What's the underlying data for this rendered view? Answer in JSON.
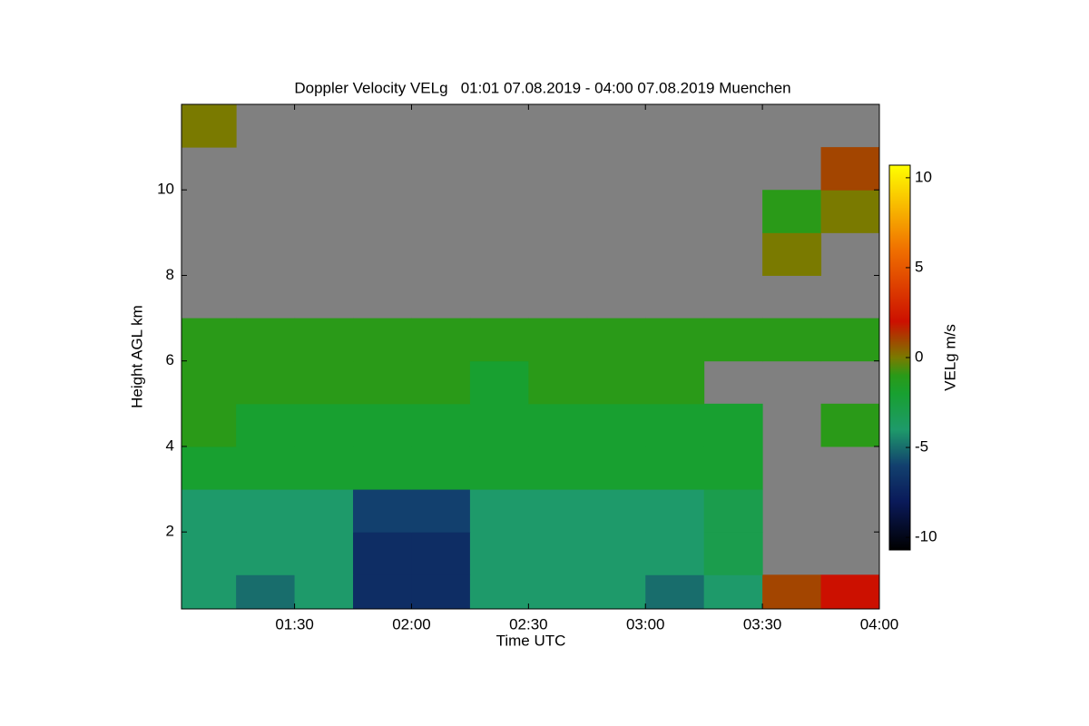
{
  "chart_data": {
    "type": "heatmap",
    "title": "Doppler Velocity VELg   01:01 07.08.2019 - 04:00 07.08.2019 Muenchen",
    "xlabel": "Time UTC",
    "ylabel": "Height AGL km",
    "colorbar_label": "VELg m/s",
    "xlim": [
      61,
      240
    ],
    "xticks": [
      {
        "value": 90,
        "label": "01:30"
      },
      {
        "value": 120,
        "label": "02:00"
      },
      {
        "value": 150,
        "label": "02:30"
      },
      {
        "value": 180,
        "label": "03:00"
      },
      {
        "value": 210,
        "label": "03:30"
      },
      {
        "value": 240,
        "label": "04:00"
      }
    ],
    "ylim": [
      0.2,
      12
    ],
    "yticks": [
      2,
      4,
      6,
      8,
      10
    ],
    "zlim": [
      -10.7,
      10.7
    ],
    "zticks": [
      -10,
      -5,
      0,
      5,
      10
    ],
    "missing_color": "#808080",
    "colormap": [
      {
        "value": -10.7,
        "color": "#000000"
      },
      {
        "value": -8,
        "color": "#0a1a5a"
      },
      {
        "value": -6,
        "color": "#12406e"
      },
      {
        "value": -4,
        "color": "#1e9a6a"
      },
      {
        "value": -2,
        "color": "#18a030"
      },
      {
        "value": -1,
        "color": "#2a9a18"
      },
      {
        "value": 0,
        "color": "#7a7a00"
      },
      {
        "value": 2,
        "color": "#cc1000"
      },
      {
        "value": 6,
        "color": "#f07000"
      },
      {
        "value": 10.7,
        "color": "#ffff00"
      }
    ],
    "x_bins": [
      61,
      75,
      90,
      105,
      120,
      135,
      150,
      165,
      180,
      195,
      210,
      225,
      240
    ],
    "y_bins": [
      0.2,
      1,
      2,
      3,
      4,
      5,
      6,
      7,
      8,
      9,
      10,
      11,
      12
    ],
    "z": [
      [
        -4,
        -5,
        -4,
        -7,
        -7,
        -4,
        -4,
        -4,
        -5,
        -4,
        1,
        2
      ],
      [
        -4,
        -4,
        -4,
        -7,
        -7,
        -4,
        -4,
        -4,
        -4,
        -3,
        null,
        null
      ],
      [
        -4,
        -4,
        -4,
        -6,
        -6,
        -4,
        -4,
        -4,
        -4,
        -3,
        null,
        null
      ],
      [
        -2,
        -2,
        -2,
        -2,
        -2,
        -2,
        -2,
        -2,
        -2,
        -2,
        null,
        null
      ],
      [
        -1,
        -2,
        -2,
        -2,
        -2,
        -2,
        -2,
        -2,
        -2,
        -2,
        null,
        -1
      ],
      [
        -1,
        -1,
        -1,
        -1,
        -1,
        -2,
        -1,
        -1,
        -1,
        null,
        null,
        null
      ],
      [
        -1,
        -1,
        -1,
        -1,
        -1,
        -1,
        -1,
        -1,
        -1,
        -1,
        -1,
        -1
      ],
      [
        null,
        null,
        null,
        null,
        null,
        null,
        null,
        null,
        null,
        null,
        null,
        null
      ],
      [
        null,
        null,
        null,
        null,
        null,
        null,
        null,
        null,
        null,
        null,
        0,
        null
      ],
      [
        null,
        null,
        null,
        null,
        null,
        null,
        null,
        null,
        null,
        null,
        -1,
        0
      ],
      [
        null,
        null,
        null,
        null,
        null,
        null,
        null,
        null,
        null,
        null,
        null,
        1
      ],
      [
        0,
        null,
        null,
        null,
        null,
        null,
        null,
        null,
        null,
        null,
        null,
        null
      ]
    ]
  }
}
